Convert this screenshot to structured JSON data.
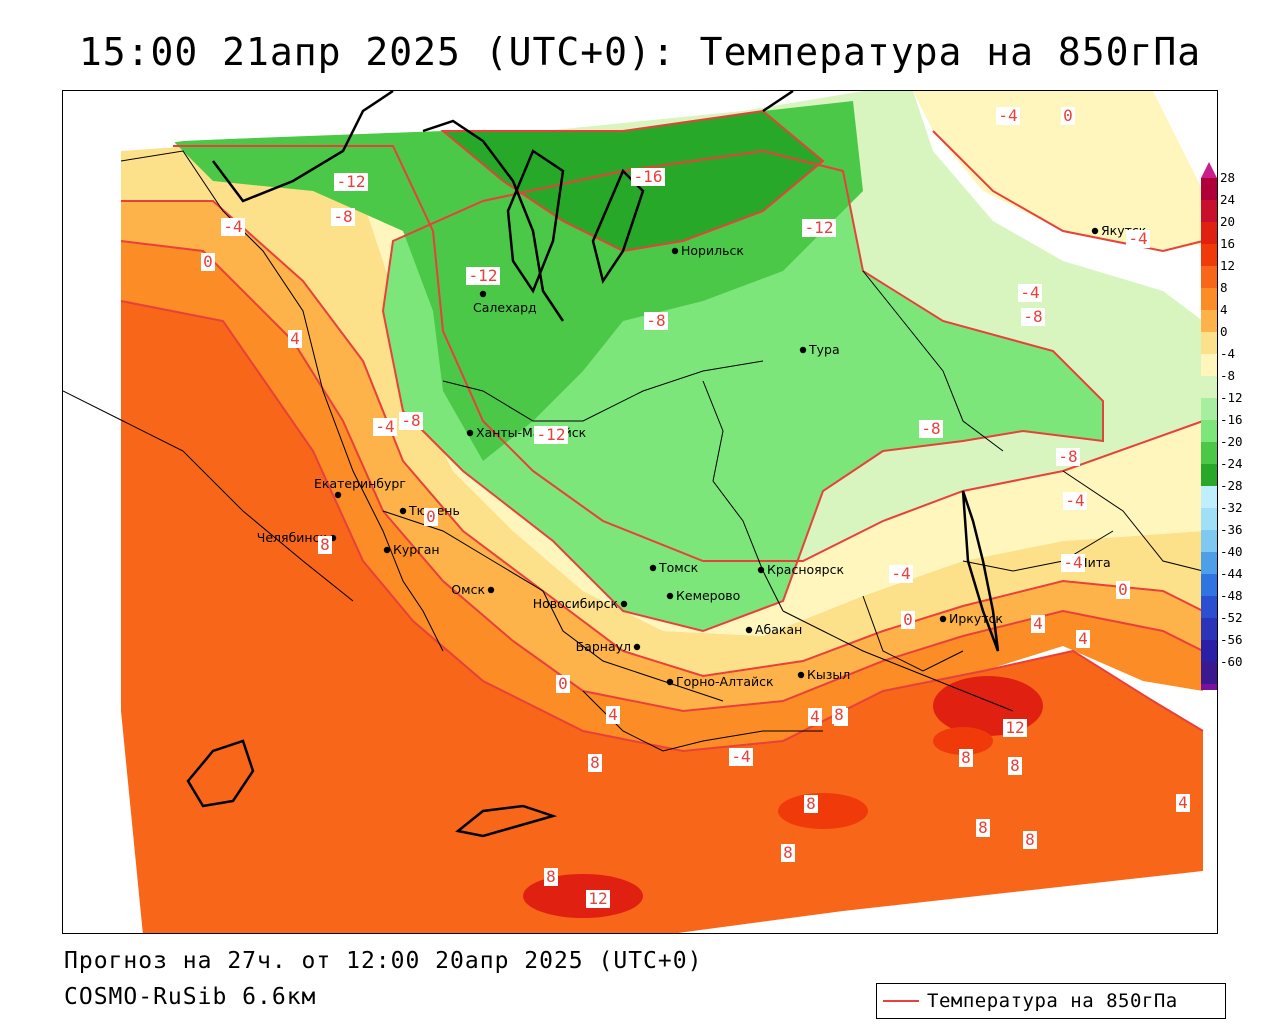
{
  "title": "15:00 21апр 2025 (UTC+0): Температура на 850гПа",
  "footer": {
    "forecast": "Прогноз на 27ч. от 12:00 20апр 2025 (UTC+0)",
    "model": "COSMO-RuSib 6.6км"
  },
  "legend": {
    "label": "Температура на 850гПа",
    "line_color": "#e8403a"
  },
  "color_scale": {
    "ticks": [
      "28",
      "24",
      "20",
      "16",
      "12",
      "8",
      "4",
      "0",
      "-4",
      "-8",
      "-12",
      "-16",
      "-20",
      "-24",
      "-28",
      "-32",
      "-36",
      "-40",
      "-44",
      "-48",
      "-52",
      "-56",
      "-60"
    ],
    "colors": [
      "#b0003a",
      "#c8102e",
      "#e02010",
      "#f03a0a",
      "#f8661a",
      "#fb8c26",
      "#fdb24a",
      "#fde08a",
      "#fef6bc",
      "#d8f5c0",
      "#a8eea0",
      "#7ce67a",
      "#4cc848",
      "#28a828",
      "#bfefff",
      "#9fe0f8",
      "#7fc8f0",
      "#4f9ee8",
      "#2f74e0",
      "#2a4fd0",
      "#2a34b8",
      "#2a20a8",
      "#3a1890",
      "#7a10a0"
    ],
    "top_cap": "#c81e8c",
    "bottom_cap": "#b01cc8"
  },
  "cities": [
    {
      "name": "Салехард"
    },
    {
      "name": "Норильск"
    },
    {
      "name": "Тура"
    },
    {
      "name": "Якутск"
    },
    {
      "name": "Ханты-Мансийск"
    },
    {
      "name": "Екатеринбург"
    },
    {
      "name": "Тюмень"
    },
    {
      "name": "Челябинск"
    },
    {
      "name": "Курган"
    },
    {
      "name": "Омск"
    },
    {
      "name": "Новосибирск"
    },
    {
      "name": "Томск"
    },
    {
      "name": "Кемерово"
    },
    {
      "name": "Красноярск"
    },
    {
      "name": "Барнаул"
    },
    {
      "name": "Абакан"
    },
    {
      "name": "Горно-Алтайск"
    },
    {
      "name": "Кызыл"
    },
    {
      "name": "Иркутск"
    },
    {
      "name": "Чита"
    }
  ],
  "isotherm_labels": [
    "-12",
    "-8",
    "-4",
    "0",
    "-16",
    "-12",
    "-12",
    "-4",
    "-8",
    "-4",
    "0",
    "4",
    "-4",
    "-8",
    "-12",
    "-8",
    "-8",
    "-4",
    "-4",
    "0",
    "8",
    "-8",
    "-4",
    "0",
    "-4",
    "0",
    "4",
    "4",
    "0",
    "4",
    "8",
    "-4",
    "4",
    "8",
    "12",
    "8",
    "8",
    "8",
    "8",
    "8",
    "8",
    "4",
    "8",
    "12",
    "8",
    "4"
  ]
}
